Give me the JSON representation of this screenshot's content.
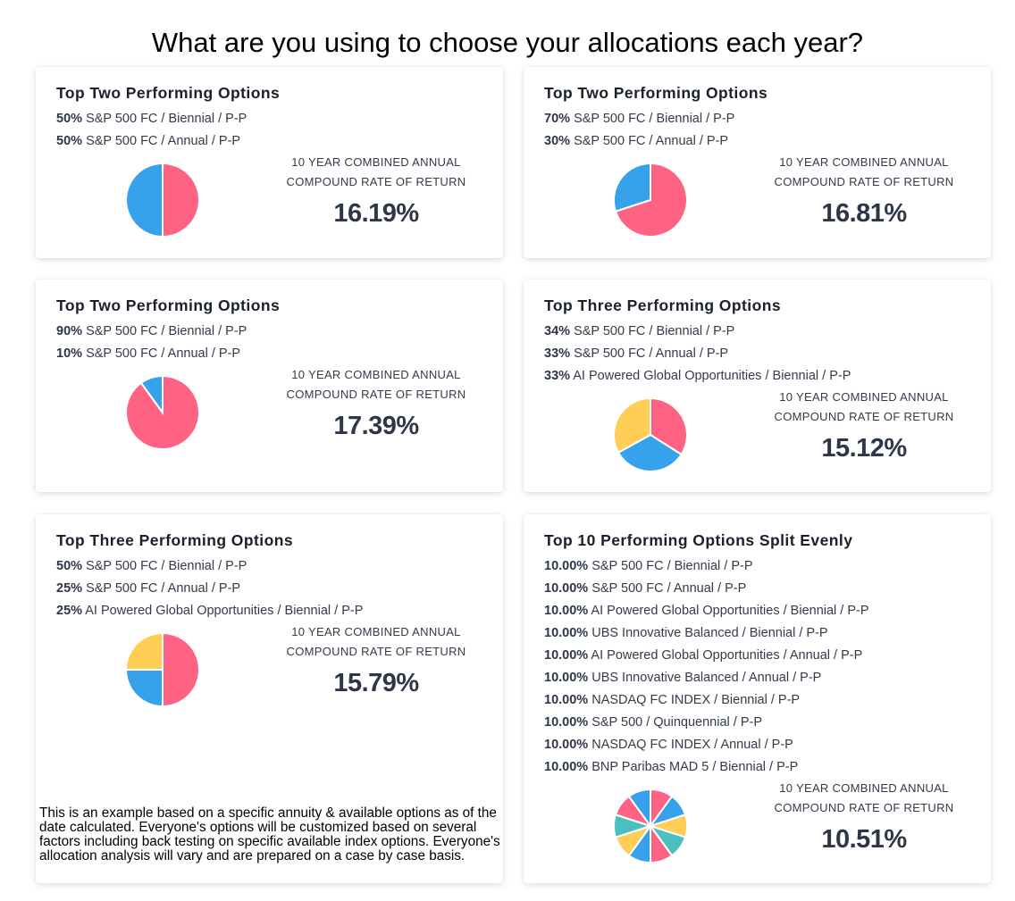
{
  "title": "What are you using to choose your allocations each year?",
  "palette": [
    "#FF6384",
    "#36A2EB",
    "#FFCE56",
    "#4BC0C0"
  ],
  "rate_label_line1": "10 YEAR COMBINED ANNUAL",
  "rate_label_line2": "COMPOUND RATE OF RETURN",
  "cards": [
    {
      "title": "Top Two Performing Options",
      "rate": "16.19%",
      "items": [
        {
          "pct": "50%",
          "label": "S&P 500 FC / Biennial / P-P",
          "value": 50
        },
        {
          "pct": "50%",
          "label": "S&P 500 FC / Annual / P-P",
          "value": 50
        }
      ]
    },
    {
      "title": "Top Two Performing Options",
      "rate": "16.81%",
      "items": [
        {
          "pct": "70%",
          "label": "S&P 500 FC / Biennial / P-P",
          "value": 70
        },
        {
          "pct": "30%",
          "label": "S&P 500 FC / Annual / P-P",
          "value": 30
        }
      ]
    },
    {
      "title": "Top Two Performing Options",
      "rate": "17.39%",
      "items": [
        {
          "pct": "90%",
          "label": "S&P 500 FC / Biennial / P-P",
          "value": 90
        },
        {
          "pct": "10%",
          "label": "S&P 500 FC / Annual / P-P",
          "value": 10
        }
      ]
    },
    {
      "title": "Top Three Performing Options",
      "rate": "15.12%",
      "items": [
        {
          "pct": "34%",
          "label": "S&P 500 FC / Biennial / P-P",
          "value": 34
        },
        {
          "pct": "33%",
          "label": "S&P 500 FC / Annual / P-P",
          "value": 33
        },
        {
          "pct": "33%",
          "label": "AI Powered Global Opportunities / Biennial / P-P",
          "value": 33
        }
      ]
    },
    {
      "title": "Top Three Performing Options",
      "rate": "15.79%",
      "items": [
        {
          "pct": "50%",
          "label": "S&P 500 FC / Biennial / P-P",
          "value": 50
        },
        {
          "pct": "25%",
          "label": "S&P 500 FC / Annual / P-P",
          "value": 25
        },
        {
          "pct": "25%",
          "label": "AI Powered Global Opportunities / Biennial / P-P",
          "value": 25
        }
      ]
    },
    {
      "title": "Top 10 Performing Options Split Evenly",
      "rate": "10.51%",
      "items": [
        {
          "pct": "10.00%",
          "label": "S&P 500 FC / Biennial / P-P",
          "value": 10
        },
        {
          "pct": "10.00%",
          "label": "S&P 500 FC / Annual / P-P",
          "value": 10
        },
        {
          "pct": "10.00%",
          "label": "AI Powered Global Opportunities / Biennial / P-P",
          "value": 10
        },
        {
          "pct": "10.00%",
          "label": "UBS Innovative Balanced / Biennial / P-P",
          "value": 10
        },
        {
          "pct": "10.00%",
          "label": "AI Powered Global Opportunities / Annual / P-P",
          "value": 10
        },
        {
          "pct": "10.00%",
          "label": "UBS Innovative Balanced / Annual / P-P",
          "value": 10
        },
        {
          "pct": "10.00%",
          "label": "NASDAQ FC INDEX / Biennial / P-P",
          "value": 10
        },
        {
          "pct": "10.00%",
          "label": "S&P 500 / Quinquennial / P-P",
          "value": 10
        },
        {
          "pct": "10.00%",
          "label": "NASDAQ FC INDEX / Annual / P-P",
          "value": 10
        },
        {
          "pct": "10.00%",
          "label": "BNP Paribas MAD 5 / Biennial / P-P",
          "value": 10
        }
      ]
    }
  ],
  "disclaimer": "This is an example based on a specific annuity & available options as of the date calculated. Everyone's options will be customized based on several factors including  back testing on specific available index options. Everyone's allocation analysis will vary and are prepared on a case by case basis."
}
